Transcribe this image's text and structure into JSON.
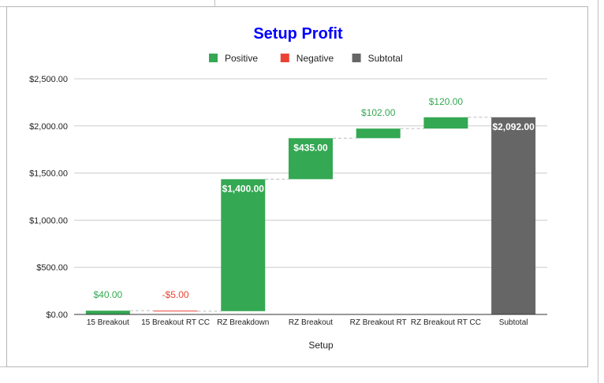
{
  "chart_data": {
    "type": "bar",
    "subtype": "waterfall",
    "title": "Setup Profit",
    "title_color": "#0000ff",
    "xlabel": "Setup",
    "ylabel": "",
    "ylim": [
      0,
      2500
    ],
    "yticks": [
      "$0.00",
      "$500.00",
      "$1,000.00",
      "$1,500.00",
      "$2,000.00",
      "$2,500.00"
    ],
    "ytick_values": [
      0,
      500,
      1000,
      1500,
      2000,
      2500
    ],
    "grid": true,
    "legend_position": "top",
    "legend": [
      {
        "label": "Positive",
        "color": "#34a853"
      },
      {
        "label": "Negative",
        "color": "#ea4335"
      },
      {
        "label": "Subtotal",
        "color": "#666666"
      }
    ],
    "categories": [
      "15 Breakout",
      "15 Breakout RT CC",
      "RZ Breakdown",
      "RZ Breakout",
      "RZ Breakout RT",
      "RZ Breakout RT CC",
      "Subtotal"
    ],
    "values": [
      40,
      -5,
      1400,
      435,
      102,
      120,
      2092
    ],
    "kinds": [
      "positive",
      "negative",
      "positive",
      "positive",
      "positive",
      "positive",
      "subtotal"
    ],
    "data_labels": [
      "$40.00",
      "-$5.00",
      "$1,400.00",
      "$435.00",
      "$102.00",
      "$120.00",
      "$2,092.00"
    ],
    "colors": {
      "positive": "#34a853",
      "negative": "#ea4335",
      "subtotal": "#666666"
    }
  }
}
